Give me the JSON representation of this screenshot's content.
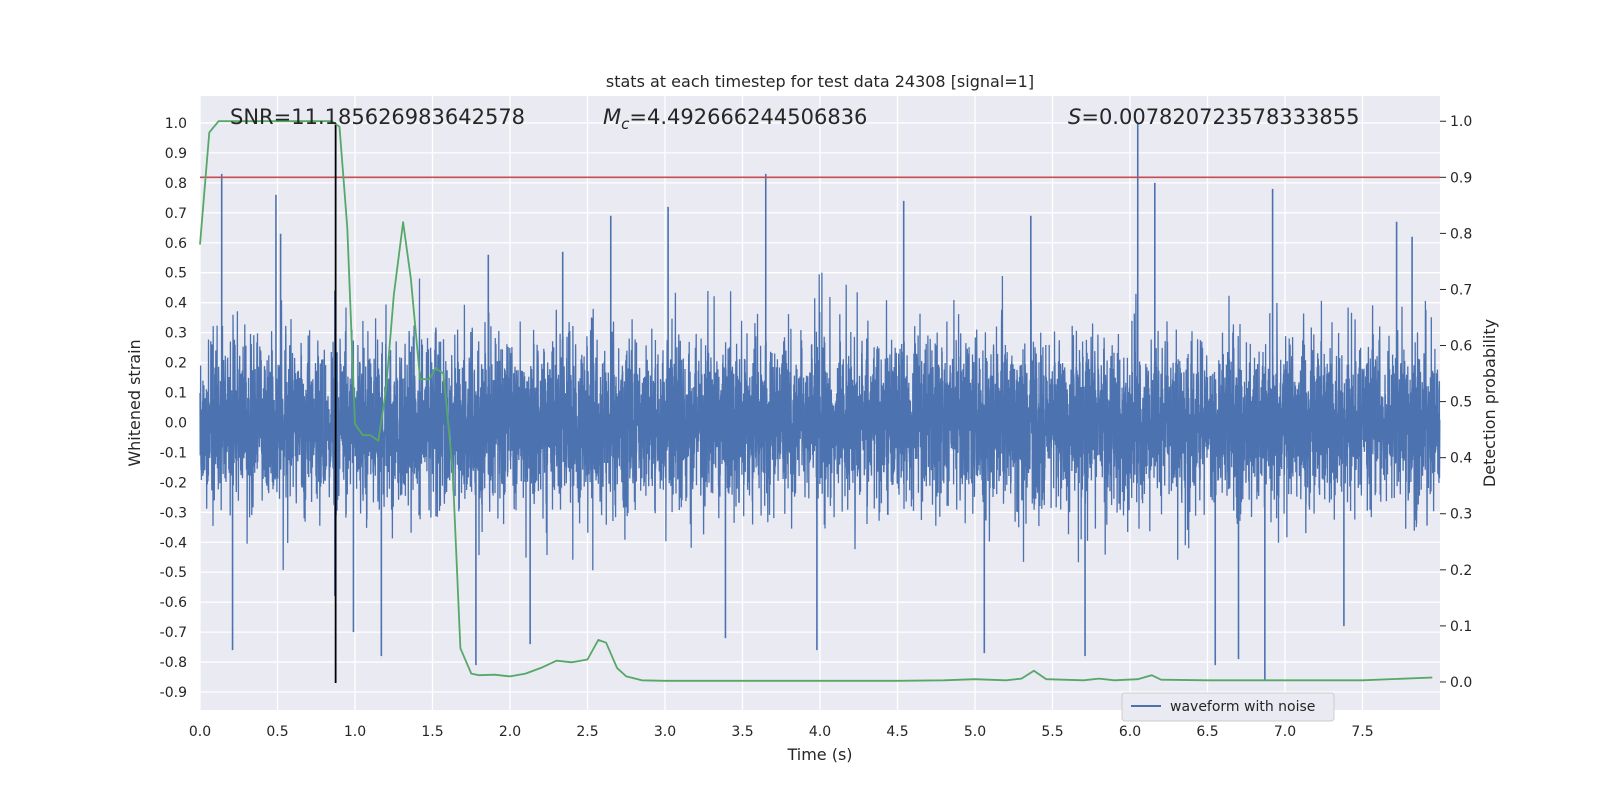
{
  "chart_data": {
    "type": "line",
    "title": "stats at each timestep for test data 24308 [signal=1]",
    "xlabel": "Time (s)",
    "ylabel": "Whitened strain",
    "y2label": "Detection probability",
    "xlim": [
      0.0,
      8.0
    ],
    "ylim": [
      -0.96,
      1.09
    ],
    "y2lim": [
      -0.05,
      1.045
    ],
    "xticks": [
      0.0,
      0.5,
      1.0,
      1.5,
      2.0,
      2.5,
      3.0,
      3.5,
      4.0,
      4.5,
      5.0,
      5.5,
      6.0,
      6.5,
      7.0,
      7.5
    ],
    "xtick_labels": [
      "0.0",
      "0.5",
      "1.0",
      "1.5",
      "2.0",
      "2.5",
      "3.0",
      "3.5",
      "4.0",
      "4.5",
      "5.0",
      "5.5",
      "6.0",
      "6.5",
      "7.0",
      "7.5"
    ],
    "yticks": [
      1.0,
      0.9,
      0.8,
      0.7,
      0.6,
      0.5,
      0.4,
      0.3,
      0.2,
      0.1,
      0.0,
      -0.1,
      -0.2,
      -0.3,
      -0.4,
      -0.5,
      -0.6,
      -0.7,
      -0.8,
      -0.9
    ],
    "ytick_labels": [
      "1.0",
      "0.9",
      "0.8",
      "0.7",
      "0.6",
      "0.5",
      "0.4",
      "0.3",
      "0.2",
      "0.1",
      "0.0",
      "-0.1",
      "-0.2",
      "-0.3",
      "-0.4",
      "-0.5",
      "-0.6",
      "-0.7",
      "-0.8",
      "-0.9"
    ],
    "y2ticks": [
      1.0,
      0.9,
      0.8,
      0.7,
      0.6,
      0.5,
      0.4,
      0.3,
      0.2,
      0.1,
      0.0
    ],
    "y2tick_labels": [
      "1.0",
      "0.9",
      "0.8",
      "0.7",
      "0.6",
      "0.5",
      "0.4",
      "0.3",
      "0.2",
      "0.1",
      "0.0"
    ],
    "grid": true,
    "legend": {
      "entries": [
        "waveform with noise"
      ],
      "placement": "lower-right"
    },
    "annotations": {
      "snr": "SNR=11.185626983642578",
      "mc_symbol": "M",
      "mc_sub": "c",
      "mc_value": "=4.492666244506836",
      "s_symbol": "S",
      "s_value": "=0.007820723578333855"
    },
    "threshold": {
      "axis": "right",
      "value": 0.9,
      "color": "#c44e52"
    },
    "merger_marker": {
      "x": 0.875,
      "y_range": [
        -0.87,
        1.0
      ],
      "color": "#000000"
    },
    "series": [
      {
        "name": "waveform with noise",
        "axis": "left",
        "color": "#4c72b0",
        "style": "noise",
        "typical_amplitude": 0.3,
        "peaks": [
          [
            0.14,
            0.83
          ],
          [
            0.49,
            0.76
          ],
          [
            0.52,
            0.63
          ],
          [
            0.87,
            0.44
          ],
          [
            0.87,
            -0.58
          ],
          [
            0.99,
            -0.7
          ],
          [
            1.17,
            -0.78
          ],
          [
            0.21,
            -0.76
          ],
          [
            1.78,
            -0.81
          ],
          [
            2.13,
            -0.74
          ],
          [
            2.65,
            0.69
          ],
          [
            3.02,
            0.72
          ],
          [
            3.65,
            0.83
          ],
          [
            3.39,
            -0.72
          ],
          [
            3.98,
            -0.76
          ],
          [
            4.54,
            0.74
          ],
          [
            5.06,
            -0.77
          ],
          [
            5.36,
            0.69
          ],
          [
            5.71,
            -0.78
          ],
          [
            6.05,
            1.0
          ],
          [
            6.16,
            0.8
          ],
          [
            6.55,
            -0.81
          ],
          [
            6.7,
            -0.79
          ],
          [
            6.87,
            -0.86
          ],
          [
            6.92,
            0.78
          ],
          [
            7.38,
            -0.68
          ],
          [
            7.72,
            0.67
          ],
          [
            7.82,
            0.62
          ],
          [
            1.86,
            0.56
          ],
          [
            2.34,
            0.57
          ]
        ]
      },
      {
        "name": "",
        "axis": "right",
        "color": "#55a868",
        "style": "line",
        "x": [
          0.0,
          0.06,
          0.12,
          0.2,
          0.4,
          0.6,
          0.8,
          0.85,
          0.9,
          0.95,
          1.0,
          1.05,
          1.1,
          1.15,
          1.2,
          1.25,
          1.31,
          1.36,
          1.42,
          1.48,
          1.52,
          1.57,
          1.63,
          1.68,
          1.75,
          1.8,
          1.9,
          2.0,
          2.1,
          2.2,
          2.3,
          2.4,
          2.5,
          2.57,
          2.62,
          2.69,
          2.75,
          2.85,
          3.0,
          3.5,
          4.0,
          4.5,
          4.8,
          5.0,
          5.2,
          5.3,
          5.38,
          5.46,
          5.7,
          5.8,
          5.9,
          6.05,
          6.14,
          6.2,
          6.5,
          7.0,
          7.5,
          7.95
        ],
        "y": [
          0.78,
          0.98,
          1.0,
          1.0,
          1.0,
          1.0,
          1.0,
          1.0,
          0.99,
          0.81,
          0.46,
          0.44,
          0.44,
          0.43,
          0.52,
          0.69,
          0.82,
          0.72,
          0.54,
          0.54,
          0.56,
          0.55,
          0.38,
          0.06,
          0.015,
          0.012,
          0.013,
          0.01,
          0.015,
          0.025,
          0.038,
          0.035,
          0.04,
          0.075,
          0.07,
          0.025,
          0.01,
          0.003,
          0.002,
          0.002,
          0.002,
          0.002,
          0.003,
          0.005,
          0.003,
          0.006,
          0.02,
          0.005,
          0.003,
          0.006,
          0.003,
          0.005,
          0.012,
          0.004,
          0.003,
          0.003,
          0.003,
          0.008
        ]
      }
    ]
  }
}
